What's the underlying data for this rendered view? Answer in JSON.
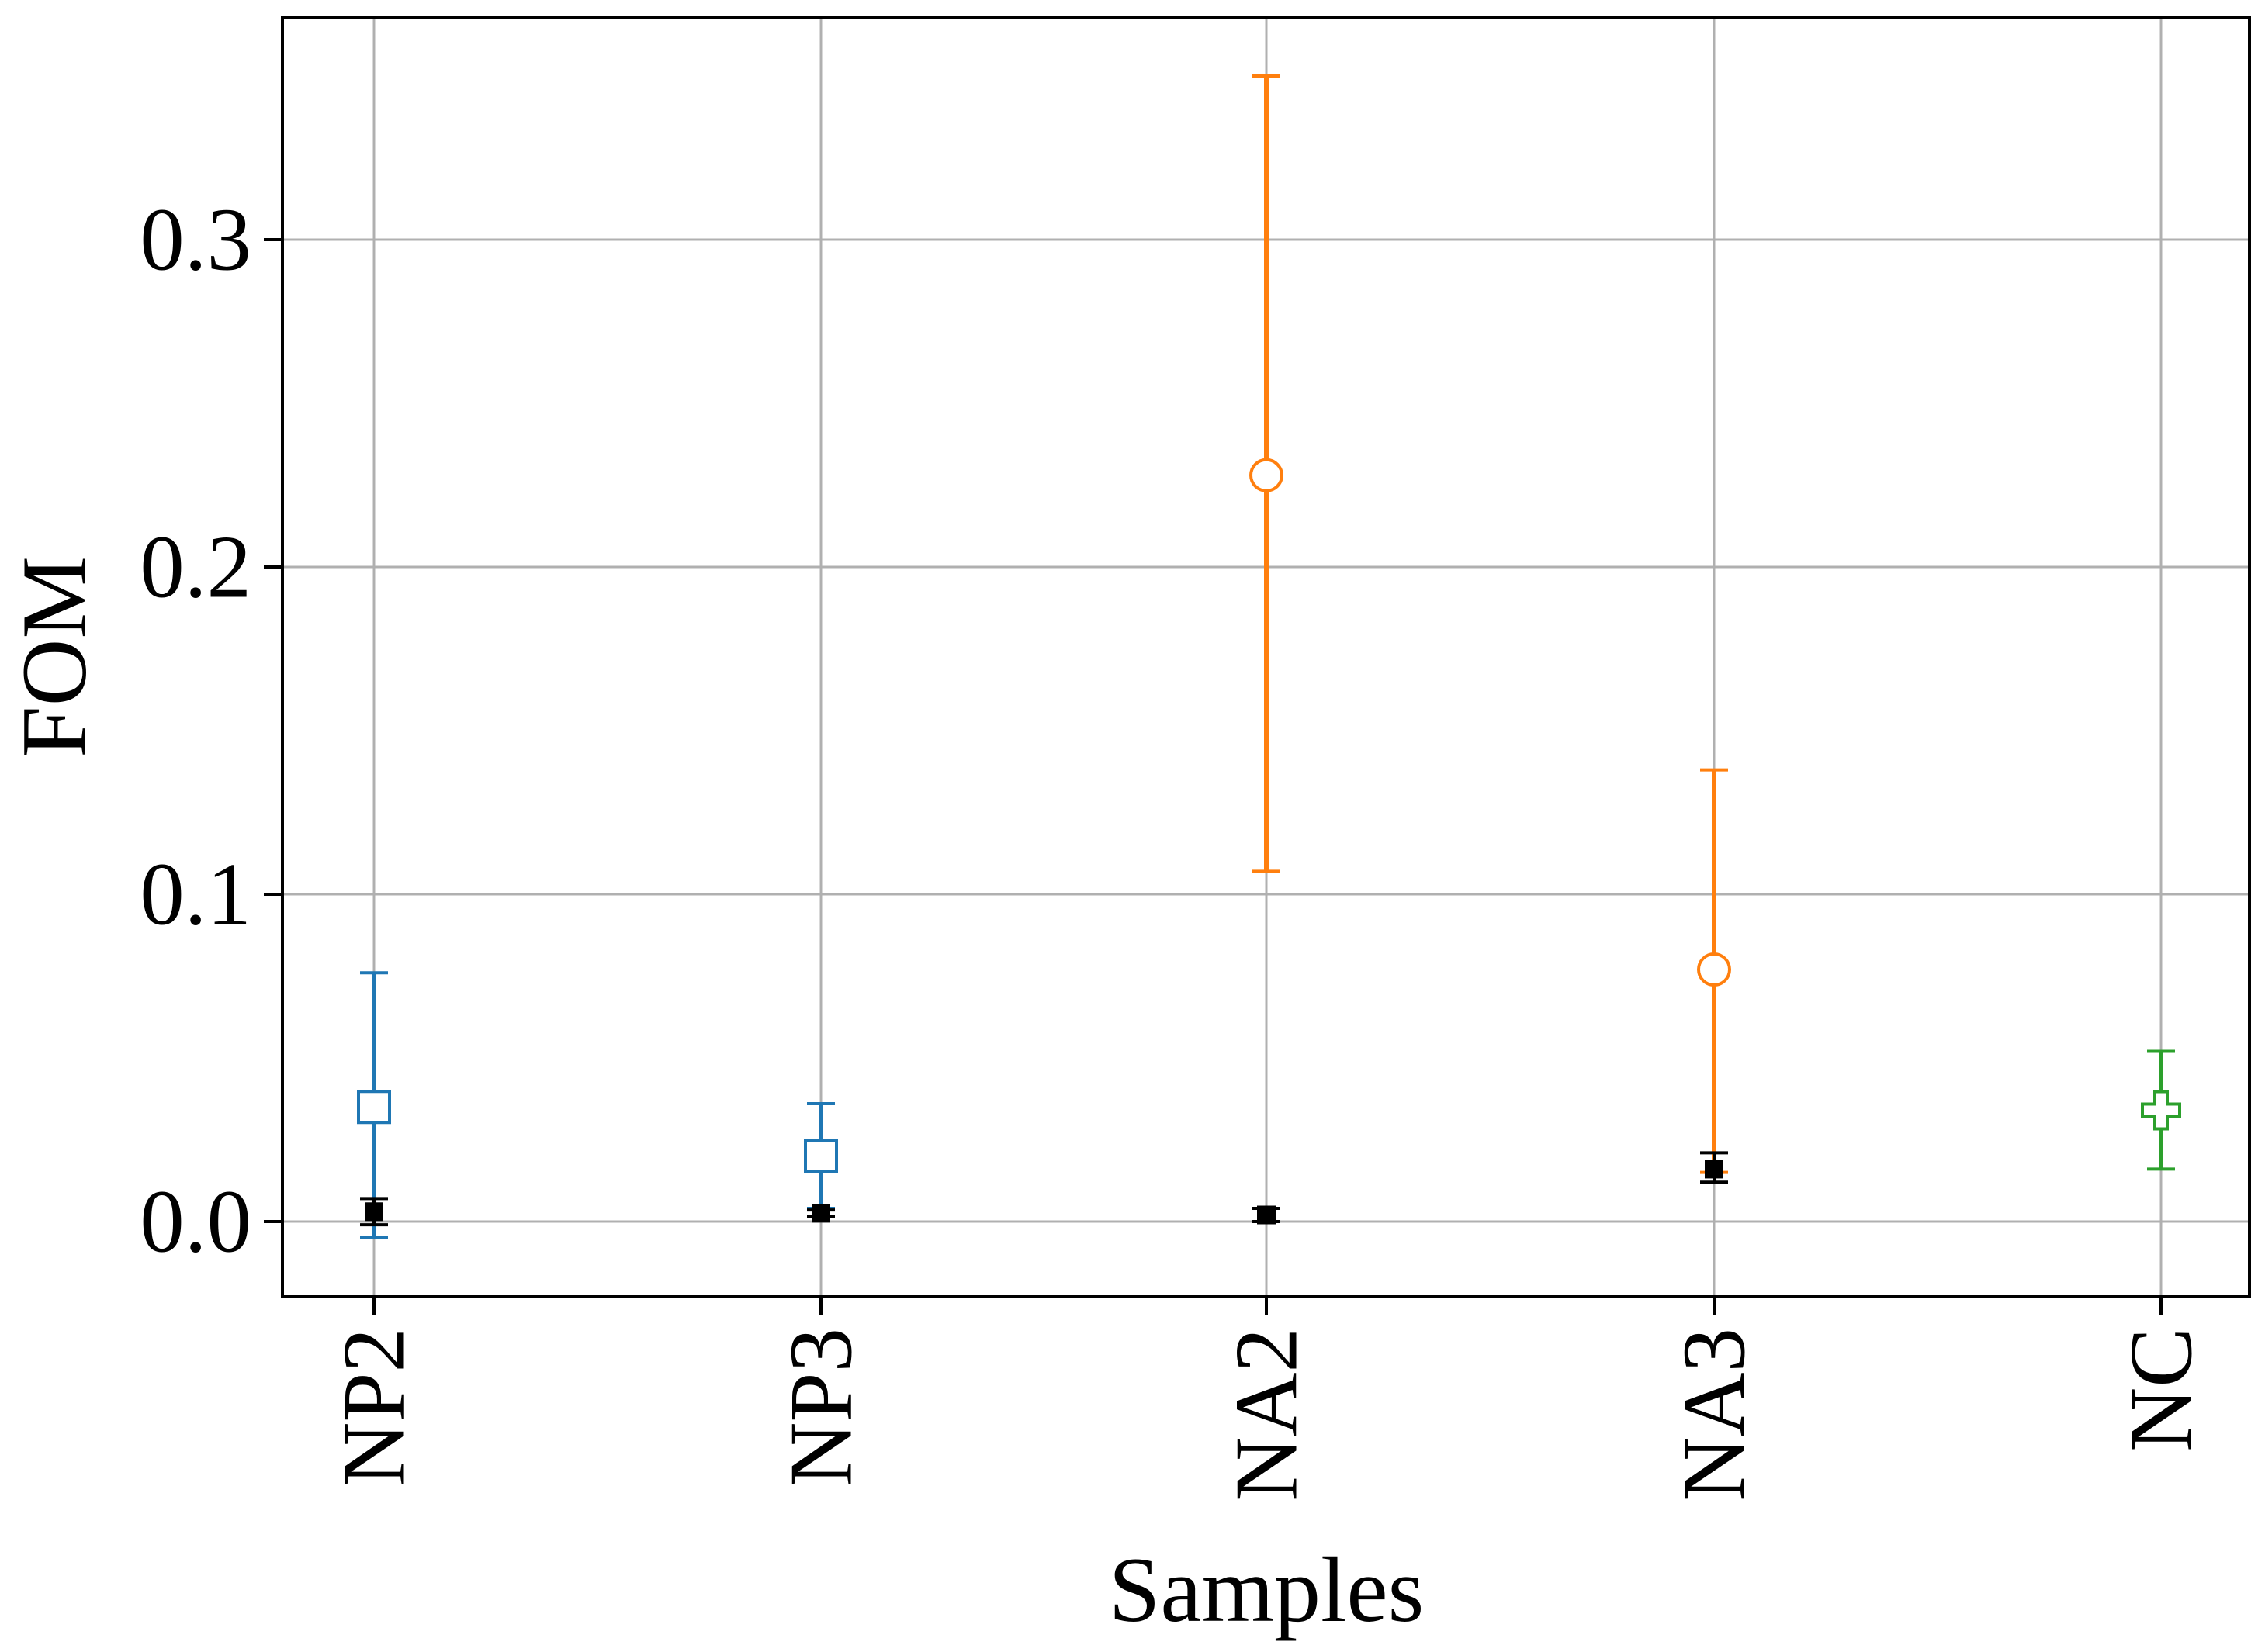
{
  "chart_data": {
    "type": "scatter",
    "title": "",
    "xlabel": "Samples",
    "ylabel": "FOM",
    "categories": [
      "NP2",
      "NP3",
      "NA2",
      "NA3",
      "NC"
    ],
    "ylim": [
      -0.023,
      0.368
    ],
    "yticks": [
      "0.0",
      "0.1",
      "0.2",
      "0.3"
    ],
    "ytick_values": [
      0.0,
      0.1,
      0.2,
      0.3
    ],
    "grid": true,
    "legend": "none",
    "series": [
      {
        "marker": "open-square",
        "color": "#1f77b4",
        "points": [
          {
            "x": "NP2",
            "y": 0.035,
            "err_low": -0.005,
            "err_high": 0.076
          },
          {
            "x": "NP3",
            "y": 0.02,
            "err_low": 0.004,
            "err_high": 0.036
          }
        ]
      },
      {
        "marker": "open-circle",
        "color": "#ff7f0e",
        "points": [
          {
            "x": "NA2",
            "y": 0.228,
            "err_low": 0.107,
            "err_high": 0.35
          },
          {
            "x": "NA3",
            "y": 0.077,
            "err_low": 0.015,
            "err_high": 0.138
          }
        ]
      },
      {
        "marker": "open-plus",
        "color": "#2ca02c",
        "points": [
          {
            "x": "NC",
            "y": 0.034,
            "err_low": 0.016,
            "err_high": 0.052
          }
        ]
      },
      {
        "marker": "filled-square",
        "color": "#000000",
        "points": [
          {
            "x": "NP2",
            "y": 0.003,
            "err_low": -0.001,
            "err_high": 0.007
          },
          {
            "x": "NP3",
            "y": 0.0025,
            "err_low": 0.0015,
            "err_high": 0.0035
          },
          {
            "x": "NA2",
            "y": 0.002,
            "err_low": 0.0,
            "err_high": 0.004
          },
          {
            "x": "NA3",
            "y": 0.016,
            "err_low": 0.012,
            "err_high": 0.021
          }
        ]
      }
    ]
  }
}
